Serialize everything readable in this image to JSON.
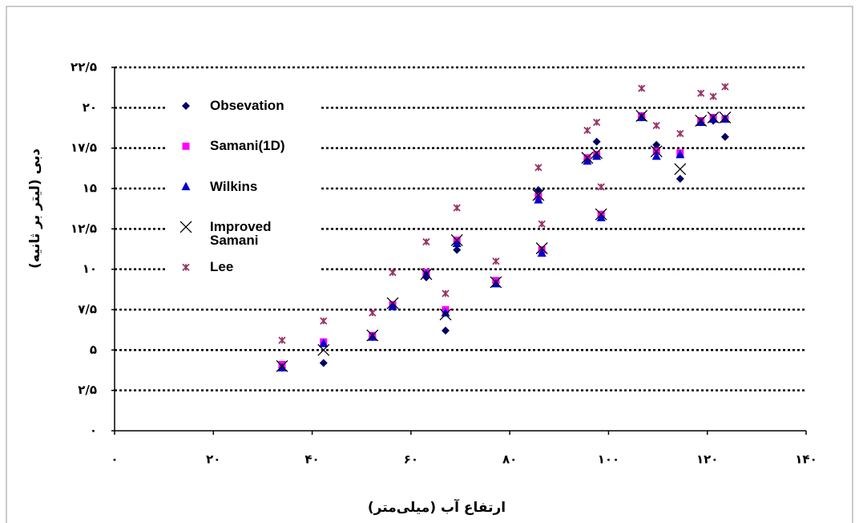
{
  "chart_data": {
    "type": "scatter",
    "x_label": "ارتفاع آب (میلی‌متر)",
    "y_label": "دبی (لیتر بر ثانیه)",
    "x": [
      33.9,
      42.3,
      52.2,
      56.3,
      63.1,
      67.0,
      69.3,
      77.2,
      85.8,
      86.5,
      95.7,
      97.6,
      98.5,
      106.7,
      109.7,
      114.5,
      118.7,
      121.2,
      123.6
    ],
    "series": [
      {
        "name": "Obsevation",
        "color": "#000066",
        "marker": "diamond",
        "values": [
          3.9,
          4.2,
          5.8,
          7.7,
          9.5,
          6.2,
          11.2,
          9.2,
          14.9,
          11.1,
          16.8,
          17.9,
          13.3,
          19.4,
          17.7,
          15.6,
          19.1,
          19.2,
          18.2
        ]
      },
      {
        "name": "Samani(1D)",
        "color": "#ff00ff",
        "marker": "square",
        "values": [
          4.1,
          5.5,
          5.9,
          7.8,
          9.8,
          7.5,
          11.8,
          9.3,
          14.5,
          11.2,
          16.9,
          17.1,
          13.4,
          19.5,
          17.3,
          17.2,
          19.2,
          19.4,
          19.3
        ]
      },
      {
        "name": "Wilkins",
        "color": "#0000cc",
        "marker": "triangle",
        "values": [
          3.9,
          5.4,
          5.8,
          7.7,
          9.7,
          7.3,
          11.6,
          9.1,
          14.3,
          11.0,
          16.7,
          17.0,
          13.2,
          19.4,
          17.0,
          17.1,
          19.1,
          19.3,
          19.3
        ]
      },
      {
        "name": "Improved Samani",
        "color": "#000000",
        "marker": "x",
        "values": [
          4.0,
          5.0,
          5.9,
          7.9,
          9.7,
          7.2,
          11.8,
          9.2,
          14.6,
          11.3,
          16.9,
          17.2,
          13.4,
          19.5,
          17.3,
          16.2,
          19.2,
          19.4,
          19.4
        ]
      },
      {
        "name": "Lee",
        "color": "#993366",
        "marker": "star",
        "values": [
          5.6,
          6.8,
          7.3,
          9.8,
          11.7,
          8.5,
          13.8,
          10.5,
          16.3,
          12.8,
          18.6,
          19.1,
          15.1,
          21.2,
          18.9,
          18.4,
          20.9,
          20.7,
          21.3
        ]
      }
    ],
    "xlim": [
      0,
      140
    ],
    "xticks": [
      {
        "value": 0,
        "label": "۰"
      },
      {
        "value": 20,
        "label": "۲۰"
      },
      {
        "value": 40,
        "label": "۴۰"
      },
      {
        "value": 60,
        "label": "۶۰"
      },
      {
        "value": 80,
        "label": "۸۰"
      },
      {
        "value": 100,
        "label": "۱۰۰"
      },
      {
        "value": 120,
        "label": "۱۲۰"
      },
      {
        "value": 140,
        "label": "۱۴۰"
      }
    ],
    "ylim": [
      0,
      22.5
    ],
    "yticks": [
      {
        "value": 0,
        "label": "۰"
      },
      {
        "value": 2.5,
        "label": "۲/۵"
      },
      {
        "value": 5,
        "label": "۵"
      },
      {
        "value": 7.5,
        "label": "۷/۵"
      },
      {
        "value": 10,
        "label": "۱۰"
      },
      {
        "value": 12.5,
        "label": "۱۲/۵"
      },
      {
        "value": 15,
        "label": "۱۵"
      },
      {
        "value": 17.5,
        "label": "۱۷/۵"
      },
      {
        "value": 20,
        "label": "۲۰"
      },
      {
        "value": 22.5,
        "label": "۲۲/۵"
      }
    ],
    "grid": true
  }
}
